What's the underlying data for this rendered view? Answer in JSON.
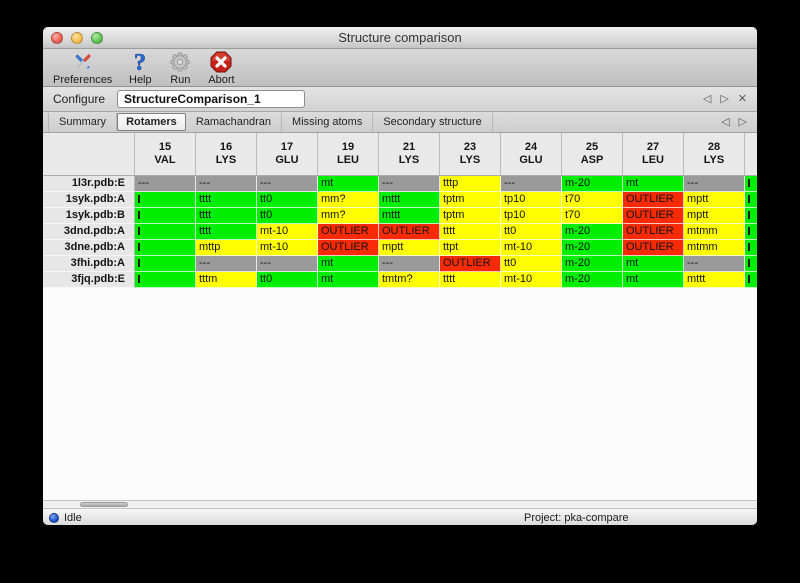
{
  "window": {
    "title": "Structure comparison"
  },
  "toolbar": {
    "buttons": [
      {
        "label": "Preferences",
        "icon": "tools-icon"
      },
      {
        "label": "Help",
        "icon": "question-icon"
      },
      {
        "label": "Run",
        "icon": "gear-icon"
      },
      {
        "label": "Abort",
        "icon": "abort-icon"
      }
    ]
  },
  "configure": {
    "label": "Configure",
    "value": "StructureComparison_1"
  },
  "nav": {
    "prev": "◁",
    "next": "▷",
    "close": "✕"
  },
  "tabs": {
    "items": [
      "Summary",
      "Rotamers",
      "Ramachandran",
      "Missing atoms",
      "Secondary structure"
    ],
    "active": "Rotamers"
  },
  "colors": {
    "green": "#00ef00",
    "yellow": "#ffff00",
    "red": "#f92b07",
    "gray": "#9a9a9a"
  },
  "table": {
    "columns": [
      {
        "num": "15",
        "res": "VAL"
      },
      {
        "num": "16",
        "res": "LYS"
      },
      {
        "num": "17",
        "res": "GLU"
      },
      {
        "num": "19",
        "res": "LEU"
      },
      {
        "num": "21",
        "res": "LYS"
      },
      {
        "num": "23",
        "res": "LYS"
      },
      {
        "num": "24",
        "res": "GLU"
      },
      {
        "num": "25",
        "res": "ASP"
      },
      {
        "num": "27",
        "res": "LEU"
      },
      {
        "num": "28",
        "res": "LYS"
      }
    ],
    "rows": [
      {
        "label": "1l3r.pdb:E",
        "cells": [
          {
            "t": "---",
            "c": "gray"
          },
          {
            "t": "---",
            "c": "gray"
          },
          {
            "t": "---",
            "c": "gray"
          },
          {
            "t": "mt",
            "c": "green"
          },
          {
            "t": "---",
            "c": "gray"
          },
          {
            "t": "tttp",
            "c": "yellow"
          },
          {
            "t": "---",
            "c": "gray"
          },
          {
            "t": "m-20",
            "c": "green"
          },
          {
            "t": "mt",
            "c": "green"
          },
          {
            "t": "---",
            "c": "gray"
          }
        ],
        "partial": "green"
      },
      {
        "label": "1syk.pdb:A",
        "cells": [
          {
            "t": "",
            "c": "green",
            "clip": true
          },
          {
            "t": "tttt",
            "c": "green"
          },
          {
            "t": "tt0",
            "c": "green"
          },
          {
            "t": "mm?",
            "c": "yellow"
          },
          {
            "t": "mttt",
            "c": "green"
          },
          {
            "t": "tptm",
            "c": "yellow"
          },
          {
            "t": "tp10",
            "c": "yellow"
          },
          {
            "t": "t70",
            "c": "yellow"
          },
          {
            "t": "OUTLIER",
            "c": "red"
          },
          {
            "t": "mptt",
            "c": "yellow"
          }
        ],
        "partial": "green"
      },
      {
        "label": "1syk.pdb:B",
        "cells": [
          {
            "t": "",
            "c": "green",
            "clip": true
          },
          {
            "t": "tttt",
            "c": "green"
          },
          {
            "t": "tt0",
            "c": "green"
          },
          {
            "t": "mm?",
            "c": "yellow"
          },
          {
            "t": "mttt",
            "c": "green"
          },
          {
            "t": "tptm",
            "c": "yellow"
          },
          {
            "t": "tp10",
            "c": "yellow"
          },
          {
            "t": "t70",
            "c": "yellow"
          },
          {
            "t": "OUTLIER",
            "c": "red"
          },
          {
            "t": "mptt",
            "c": "yellow"
          }
        ],
        "partial": "green"
      },
      {
        "label": "3dnd.pdb:A",
        "cells": [
          {
            "t": "",
            "c": "green",
            "clip": true
          },
          {
            "t": "tttt",
            "c": "green"
          },
          {
            "t": "mt-10",
            "c": "yellow"
          },
          {
            "t": "OUTLIER",
            "c": "red"
          },
          {
            "t": "OUTLIER",
            "c": "red"
          },
          {
            "t": "tttt",
            "c": "yellow"
          },
          {
            "t": "tt0",
            "c": "yellow"
          },
          {
            "t": "m-20",
            "c": "green"
          },
          {
            "t": "OUTLIER",
            "c": "red"
          },
          {
            "t": "mtmm",
            "c": "yellow"
          }
        ],
        "partial": "green"
      },
      {
        "label": "3dne.pdb:A",
        "cells": [
          {
            "t": "",
            "c": "green",
            "clip": true
          },
          {
            "t": "mttp",
            "c": "yellow"
          },
          {
            "t": "mt-10",
            "c": "yellow"
          },
          {
            "t": "OUTLIER",
            "c": "red"
          },
          {
            "t": "mptt",
            "c": "yellow"
          },
          {
            "t": "ttpt",
            "c": "yellow"
          },
          {
            "t": "mt-10",
            "c": "yellow"
          },
          {
            "t": "m-20",
            "c": "green"
          },
          {
            "t": "OUTLIER",
            "c": "red"
          },
          {
            "t": "mtmm",
            "c": "yellow"
          }
        ],
        "partial": "green"
      },
      {
        "label": "3fhi.pdb:A",
        "cells": [
          {
            "t": "",
            "c": "green",
            "clip": true
          },
          {
            "t": "---",
            "c": "gray"
          },
          {
            "t": "---",
            "c": "gray"
          },
          {
            "t": "mt",
            "c": "green"
          },
          {
            "t": "---",
            "c": "gray"
          },
          {
            "t": "OUTLIER",
            "c": "red"
          },
          {
            "t": "tt0",
            "c": "yellow"
          },
          {
            "t": "m-20",
            "c": "green"
          },
          {
            "t": "mt",
            "c": "green"
          },
          {
            "t": "---",
            "c": "gray"
          }
        ],
        "partial": "green"
      },
      {
        "label": "3fjq.pdb:E",
        "cells": [
          {
            "t": "",
            "c": "green",
            "clip": true
          },
          {
            "t": "tttm",
            "c": "yellow"
          },
          {
            "t": "tt0",
            "c": "green"
          },
          {
            "t": "mt",
            "c": "green"
          },
          {
            "t": "tmtm?",
            "c": "yellow"
          },
          {
            "t": "tttt",
            "c": "yellow"
          },
          {
            "t": "mt-10",
            "c": "yellow"
          },
          {
            "t": "m-20",
            "c": "green"
          },
          {
            "t": "mt",
            "c": "green"
          },
          {
            "t": "mttt",
            "c": "yellow"
          }
        ],
        "partial": "green"
      }
    ]
  },
  "status": {
    "state": "Idle",
    "project": "Project: pka-compare"
  }
}
